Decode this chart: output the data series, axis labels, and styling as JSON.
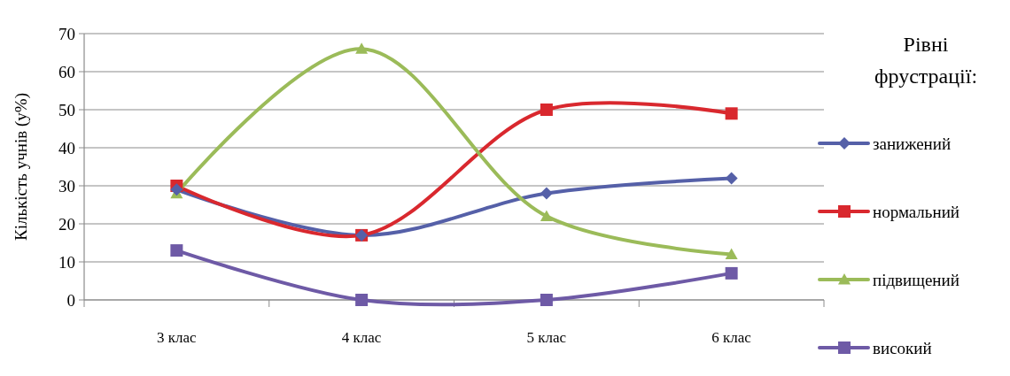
{
  "chart_data": {
    "type": "line",
    "ylabel": "Кількість учнів (у%)",
    "legend_title": "Рівні фрустрації:",
    "categories": [
      "3 клас",
      "4 клас",
      "5 клас",
      "6 клас"
    ],
    "ylim": [
      0,
      70
    ],
    "yticks": [
      0,
      10,
      20,
      30,
      40,
      50,
      60,
      70
    ],
    "grid": "y",
    "legend": "right",
    "series": [
      {
        "name": "занижений",
        "color": "#5560a8",
        "marker": "diamond",
        "values": [
          29,
          17,
          28,
          32
        ]
      },
      {
        "name": "нормальний",
        "color": "#d9282e",
        "marker": "square",
        "values": [
          30,
          17,
          50,
          49
        ]
      },
      {
        "name": "підвищений",
        "color": "#9bbb59",
        "marker": "triangle",
        "values": [
          28,
          66,
          22,
          12
        ]
      },
      {
        "name": "високий",
        "color": "#6e5aa6",
        "marker": "square",
        "values": [
          13,
          0,
          0,
          7
        ]
      }
    ]
  }
}
